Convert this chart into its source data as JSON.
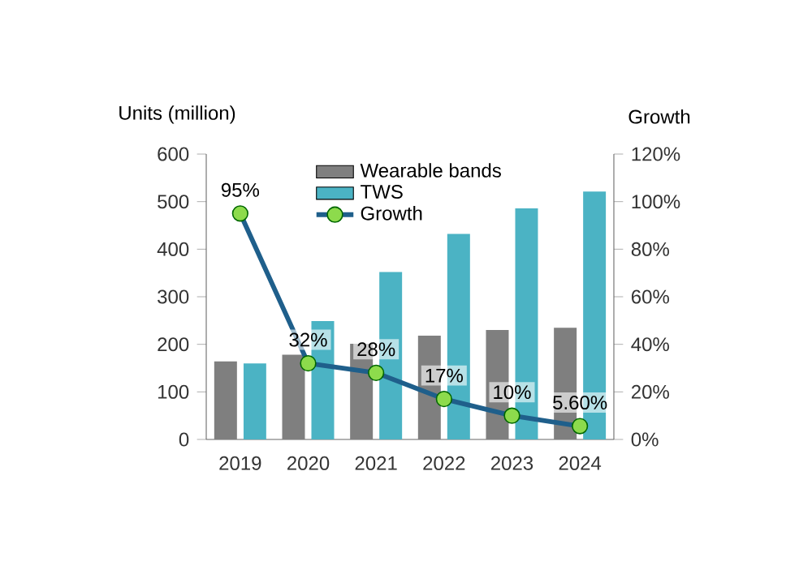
{
  "chart_data": {
    "type": "bar",
    "ylabel": "Units (million)",
    "y2label": "Growth",
    "categories": [
      "2019",
      "2020",
      "2021",
      "2022",
      "2023",
      "2024"
    ],
    "series": [
      {
        "name": "Wearable bands",
        "color": "#7f7f7f",
        "values": [
          164,
          178,
          201,
          218,
          230,
          235
        ]
      },
      {
        "name": "TWS",
        "color": "#4bb3c4",
        "values": [
          160,
          249,
          352,
          432,
          486,
          521
        ]
      },
      {
        "name": "Growth",
        "type": "line",
        "axis": "y2",
        "color": "#1f5f8b",
        "marker": "circle",
        "values": [
          95,
          32,
          28,
          17,
          10,
          5.6
        ],
        "value_labels": [
          "95%",
          "32%",
          "28%",
          "17%",
          "10%",
          "5.60%"
        ]
      }
    ],
    "ylim": [
      0,
      600
    ],
    "yticks": [
      0,
      100,
      200,
      300,
      400,
      500,
      600
    ],
    "y2lim": [
      0,
      120
    ],
    "y2ticks": [
      {
        "value": 0,
        "label": "0%"
      },
      {
        "value": 20,
        "label": "20%"
      },
      {
        "value": 40,
        "label": "40%"
      },
      {
        "value": 60,
        "label": "60%"
      },
      {
        "value": 80,
        "label": "80%"
      },
      {
        "value": 100,
        "label": "100%"
      },
      {
        "value": 120,
        "label": "120%"
      }
    ],
    "grid": false,
    "legend": "top"
  }
}
